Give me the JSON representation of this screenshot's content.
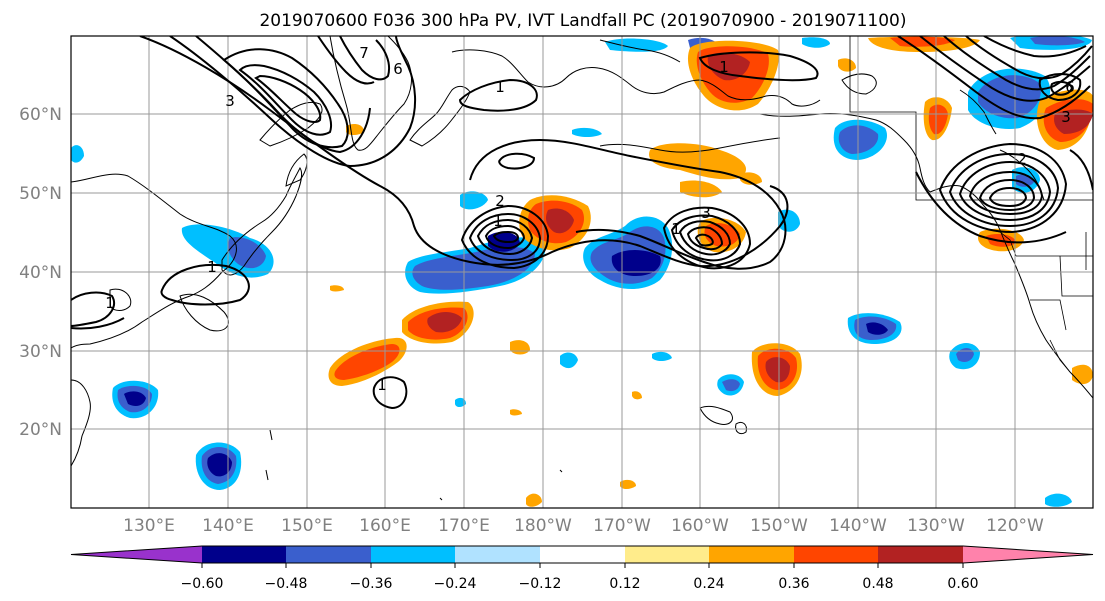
{
  "title": "2019070600 F036 300 hPa PV, IVT Landfall PC (2019070900 - 2019071100)",
  "lat_labels": [
    "60°N",
    "50°N",
    "40°N",
    "30°N",
    "20°N"
  ],
  "lon_labels": [
    "130°E",
    "140°E",
    "150°E",
    "160°E",
    "170°E",
    "180°W",
    "170°W",
    "160°W",
    "150°W",
    "140°W",
    "130°W",
    "120°W"
  ],
  "colorbar": {
    "tick_labels": [
      "−0.60",
      "−0.48",
      "−0.36",
      "−0.24",
      "−0.12",
      "0.12",
      "0.24",
      "0.36",
      "0.48",
      "0.60"
    ],
    "colors": [
      "#9932cc",
      "#00008b",
      "#3a5fcd",
      "#00bfff",
      "#b0e2ff",
      "#ffffff",
      "#ffec8b",
      "#ffa500",
      "#ff4500",
      "#b22222",
      "#ff82ab"
    ]
  },
  "contour_labels": [
    "1",
    "1",
    "1",
    "1",
    "2",
    "3",
    "1",
    "1",
    "1",
    "2",
    "3",
    "6",
    "6",
    "7",
    "3"
  ]
}
